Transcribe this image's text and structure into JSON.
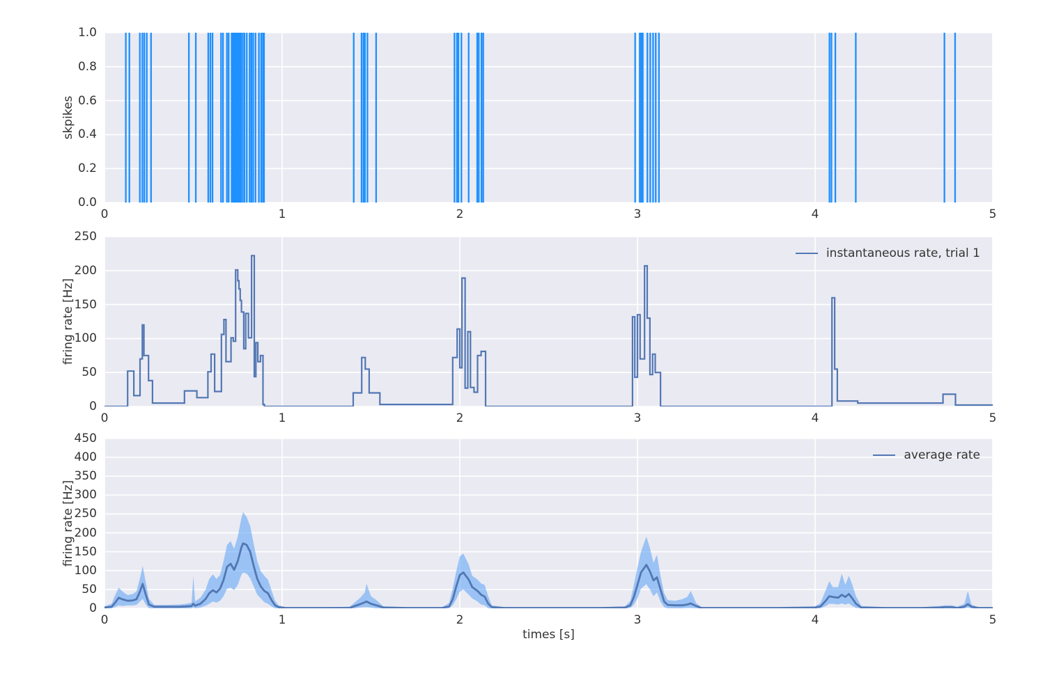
{
  "figure": {
    "background": "#ffffff",
    "axes_background": "#eaeaf2",
    "grid_color": "#ffffff",
    "text_color": "#333333",
    "xlabel": "times [s]",
    "x_range": [
      0,
      5
    ],
    "x_ticks": [
      {
        "value": 0,
        "label": "0"
      },
      {
        "value": 1,
        "label": "1"
      },
      {
        "value": 2,
        "label": "2"
      },
      {
        "value": 3,
        "label": "3"
      },
      {
        "value": 4,
        "label": "4"
      },
      {
        "value": 5,
        "label": "5"
      }
    ]
  },
  "chart_data": [
    {
      "type": "event-raster",
      "ylabel": "skpikes",
      "ylim": [
        0,
        1
      ],
      "y_ticks": [
        {
          "value": 0.0,
          "label": "0.0"
        },
        {
          "value": 0.2,
          "label": "0.2"
        },
        {
          "value": 0.4,
          "label": "0.4"
        },
        {
          "value": 0.6,
          "label": "0.6"
        },
        {
          "value": 0.8,
          "label": "0.8"
        },
        {
          "value": 1.0,
          "label": "1.0"
        }
      ],
      "spike_color": "#1e90ff",
      "spike_times": [
        0.12,
        0.14,
        0.199,
        0.213,
        0.224,
        0.238,
        0.262,
        0.475,
        0.514,
        0.584,
        0.596,
        0.608,
        0.656,
        0.667,
        0.689,
        0.699,
        0.716,
        0.722,
        0.729,
        0.735,
        0.742,
        0.748,
        0.755,
        0.762,
        0.768,
        0.778,
        0.788,
        0.801,
        0.817,
        0.827,
        0.837,
        0.85,
        0.869,
        0.882,
        0.892,
        0.898,
        1.403,
        1.447,
        1.458,
        1.466,
        1.48,
        1.529,
        1.97,
        1.984,
        1.993,
        2.009,
        2.05,
        2.098,
        2.107,
        2.122,
        2.132,
        2.987,
        3.013,
        3.022,
        3.03,
        3.056,
        3.072,
        3.088,
        3.103,
        3.121,
        4.081,
        4.092,
        4.114,
        4.229,
        4.728,
        4.788
      ]
    },
    {
      "type": "step",
      "ylabel": "firing rate [Hz]",
      "ylim": [
        0,
        250
      ],
      "y_ticks": [
        {
          "value": 0,
          "label": "0"
        },
        {
          "value": 50,
          "label": "50"
        },
        {
          "value": 100,
          "label": "100"
        },
        {
          "value": 150,
          "label": "150"
        },
        {
          "value": 200,
          "label": "200"
        },
        {
          "value": 250,
          "label": "250"
        }
      ],
      "legend": "instantaneous rate, trial 1",
      "line_color": "#5277b3",
      "steps": [
        [
          0,
          0
        ],
        [
          0.13,
          52
        ],
        [
          0.165,
          16
        ],
        [
          0.2,
          70
        ],
        [
          0.213,
          120
        ],
        [
          0.222,
          75
        ],
        [
          0.248,
          38
        ],
        [
          0.27,
          5
        ],
        [
          0.45,
          23
        ],
        [
          0.52,
          13
        ],
        [
          0.582,
          51
        ],
        [
          0.6,
          77
        ],
        [
          0.62,
          22
        ],
        [
          0.658,
          106
        ],
        [
          0.672,
          128
        ],
        [
          0.684,
          66
        ],
        [
          0.712,
          101
        ],
        [
          0.725,
          96
        ],
        [
          0.738,
          201
        ],
        [
          0.75,
          185
        ],
        [
          0.757,
          173
        ],
        [
          0.764,
          156
        ],
        [
          0.771,
          139
        ],
        [
          0.784,
          85
        ],
        [
          0.795,
          137
        ],
        [
          0.81,
          101
        ],
        [
          0.828,
          222
        ],
        [
          0.843,
          44
        ],
        [
          0.852,
          94
        ],
        [
          0.863,
          66
        ],
        [
          0.878,
          75
        ],
        [
          0.892,
          3
        ],
        [
          0.9,
          0
        ],
        [
          1.4,
          20
        ],
        [
          1.448,
          72
        ],
        [
          1.468,
          55
        ],
        [
          1.49,
          20
        ],
        [
          1.55,
          3
        ],
        [
          1.96,
          72
        ],
        [
          1.985,
          114
        ],
        [
          2.0,
          57
        ],
        [
          2.012,
          189
        ],
        [
          2.03,
          27
        ],
        [
          2.045,
          110
        ],
        [
          2.06,
          28
        ],
        [
          2.08,
          21
        ],
        [
          2.1,
          75
        ],
        [
          2.12,
          81
        ],
        [
          2.145,
          0
        ],
        [
          2.972,
          132
        ],
        [
          2.985,
          43
        ],
        [
          3.0,
          135
        ],
        [
          3.015,
          70
        ],
        [
          3.04,
          207
        ],
        [
          3.055,
          130
        ],
        [
          3.07,
          47
        ],
        [
          3.085,
          77
        ],
        [
          3.1,
          50
        ],
        [
          3.13,
          0
        ],
        [
          4.095,
          160
        ],
        [
          4.11,
          55
        ],
        [
          4.125,
          8
        ],
        [
          4.24,
          5
        ],
        [
          4.72,
          18
        ],
        [
          4.79,
          2
        ]
      ]
    },
    {
      "type": "line-band",
      "ylabel": "firing rate [Hz]",
      "ylim": [
        0,
        450
      ],
      "y_ticks": [
        {
          "value": 0,
          "label": "0"
        },
        {
          "value": 50,
          "label": "50"
        },
        {
          "value": 100,
          "label": "100"
        },
        {
          "value": 150,
          "label": "150"
        },
        {
          "value": 200,
          "label": "200"
        },
        {
          "value": 250,
          "label": "250"
        },
        {
          "value": 300,
          "label": "300"
        },
        {
          "value": 350,
          "label": "350"
        },
        {
          "value": 400,
          "label": "400"
        },
        {
          "value": 450,
          "label": "450"
        }
      ],
      "legend": "average rate",
      "line_color": "#5277b3",
      "band_color": "rgba(90,160,245,0.55)",
      "points": [
        [
          0,
          2,
          0,
          5
        ],
        [
          0.04,
          4,
          0,
          12
        ],
        [
          0.06,
          15,
          3,
          35
        ],
        [
          0.08,
          28,
          8,
          55
        ],
        [
          0.1,
          24,
          6,
          45
        ],
        [
          0.13,
          20,
          8,
          35
        ],
        [
          0.16,
          21,
          8,
          38
        ],
        [
          0.18,
          24,
          9,
          45
        ],
        [
          0.2,
          45,
          18,
          80
        ],
        [
          0.215,
          65,
          25,
          113
        ],
        [
          0.23,
          40,
          12,
          75
        ],
        [
          0.25,
          10,
          0,
          25
        ],
        [
          0.28,
          4,
          0,
          9
        ],
        [
          0.35,
          4,
          0,
          9
        ],
        [
          0.42,
          4,
          0,
          10
        ],
        [
          0.46,
          5,
          0,
          12
        ],
        [
          0.49,
          6,
          0,
          15
        ],
        [
          0.5,
          12,
          2,
          85
        ],
        [
          0.51,
          7,
          0,
          18
        ],
        [
          0.54,
          12,
          2,
          28
        ],
        [
          0.57,
          25,
          7,
          50
        ],
        [
          0.59,
          40,
          12,
          78
        ],
        [
          0.61,
          48,
          18,
          90
        ],
        [
          0.63,
          42,
          15,
          78
        ],
        [
          0.65,
          52,
          20,
          88
        ],
        [
          0.67,
          75,
          32,
          125
        ],
        [
          0.69,
          110,
          52,
          168
        ],
        [
          0.71,
          118,
          55,
          178
        ],
        [
          0.73,
          102,
          48,
          158
        ],
        [
          0.75,
          125,
          62,
          190
        ],
        [
          0.77,
          160,
          88,
          238
        ],
        [
          0.78,
          172,
          95,
          255
        ],
        [
          0.8,
          168,
          92,
          242
        ],
        [
          0.82,
          150,
          80,
          218
        ],
        [
          0.84,
          112,
          58,
          170
        ],
        [
          0.86,
          78,
          36,
          125
        ],
        [
          0.88,
          58,
          26,
          98
        ],
        [
          0.9,
          46,
          16,
          86
        ],
        [
          0.92,
          40,
          12,
          76
        ],
        [
          0.94,
          22,
          5,
          48
        ],
        [
          0.96,
          8,
          0,
          20
        ],
        [
          0.98,
          3,
          0,
          8
        ],
        [
          1.02,
          1,
          0,
          3
        ],
        [
          1.1,
          1,
          0,
          3
        ],
        [
          1.25,
          1,
          0,
          3
        ],
        [
          1.38,
          1,
          0,
          4
        ],
        [
          1.41,
          6,
          0,
          16
        ],
        [
          1.44,
          11,
          2,
          28
        ],
        [
          1.465,
          16,
          3,
          42
        ],
        [
          1.475,
          18,
          3,
          65
        ],
        [
          1.5,
          12,
          2,
          32
        ],
        [
          1.53,
          8,
          0,
          22
        ],
        [
          1.57,
          2,
          0,
          5
        ],
        [
          1.7,
          1,
          0,
          3
        ],
        [
          1.9,
          1,
          0,
          3
        ],
        [
          1.94,
          5,
          0,
          14
        ],
        [
          1.96,
          24,
          8,
          52
        ],
        [
          1.98,
          58,
          24,
          98
        ],
        [
          2.0,
          88,
          44,
          138
        ],
        [
          2.02,
          95,
          50,
          145
        ],
        [
          2.05,
          76,
          36,
          116
        ],
        [
          2.07,
          56,
          26,
          86
        ],
        [
          2.1,
          46,
          18,
          76
        ],
        [
          2.12,
          36,
          10,
          66
        ],
        [
          2.14,
          31,
          8,
          62
        ],
        [
          2.16,
          12,
          0,
          32
        ],
        [
          2.18,
          3,
          0,
          8
        ],
        [
          2.25,
          1,
          0,
          3
        ],
        [
          2.5,
          1,
          0,
          3
        ],
        [
          2.8,
          1,
          0,
          3
        ],
        [
          2.93,
          2,
          0,
          5
        ],
        [
          2.96,
          8,
          1,
          20
        ],
        [
          2.98,
          30,
          10,
          62
        ],
        [
          3.0,
          62,
          26,
          108
        ],
        [
          3.02,
          95,
          52,
          150
        ],
        [
          3.05,
          115,
          64,
          190
        ],
        [
          3.07,
          98,
          50,
          160
        ],
        [
          3.09,
          74,
          32,
          120
        ],
        [
          3.11,
          82,
          42,
          142
        ],
        [
          3.13,
          50,
          18,
          86
        ],
        [
          3.15,
          18,
          3,
          40
        ],
        [
          3.17,
          9,
          0,
          22
        ],
        [
          3.21,
          8,
          0,
          20
        ],
        [
          3.25,
          8,
          0,
          24
        ],
        [
          3.28,
          10,
          1,
          30
        ],
        [
          3.3,
          13,
          1,
          46
        ],
        [
          3.33,
          6,
          0,
          14
        ],
        [
          3.36,
          1,
          0,
          3
        ],
        [
          3.5,
          1,
          0,
          3
        ],
        [
          3.8,
          1,
          0,
          3
        ],
        [
          4.0,
          2,
          0,
          5
        ],
        [
          4.03,
          5,
          0,
          14
        ],
        [
          4.06,
          20,
          6,
          48
        ],
        [
          4.08,
          32,
          12,
          72
        ],
        [
          4.1,
          30,
          12,
          56
        ],
        [
          4.13,
          28,
          10,
          56
        ],
        [
          4.15,
          36,
          13,
          92
        ],
        [
          4.17,
          30,
          10,
          62
        ],
        [
          4.19,
          38,
          13,
          86
        ],
        [
          4.21,
          26,
          6,
          62
        ],
        [
          4.23,
          12,
          1,
          32
        ],
        [
          4.26,
          2,
          0,
          6
        ],
        [
          4.4,
          1,
          0,
          3
        ],
        [
          4.6,
          1,
          0,
          3
        ],
        [
          4.7,
          2,
          0,
          6
        ],
        [
          4.73,
          3,
          0,
          8
        ],
        [
          4.77,
          3,
          0,
          8
        ],
        [
          4.8,
          1,
          0,
          4
        ],
        [
          4.84,
          4,
          0,
          12
        ],
        [
          4.86,
          11,
          2,
          46
        ],
        [
          4.88,
          4,
          0,
          10
        ],
        [
          4.92,
          1,
          0,
          3
        ],
        [
          5.0,
          1,
          0,
          3
        ]
      ]
    }
  ]
}
